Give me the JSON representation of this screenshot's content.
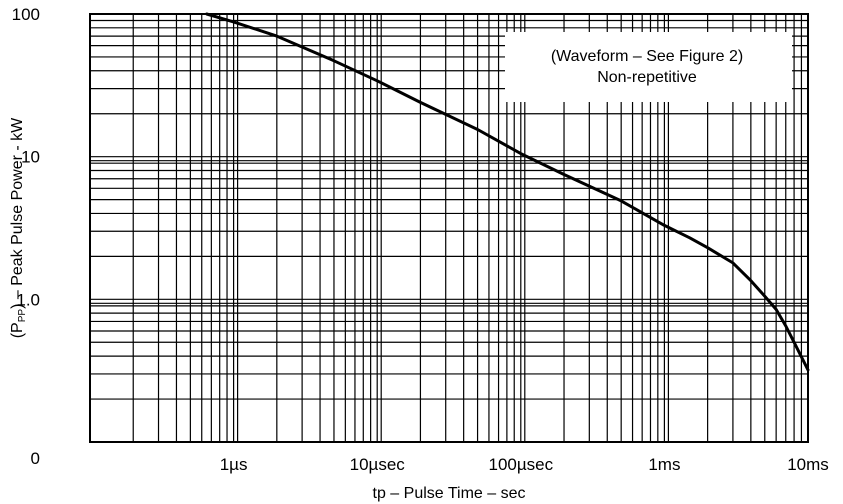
{
  "chart_data": {
    "type": "line",
    "title": "",
    "xlabel": "tp – Pulse Time – sec",
    "ylabel": "Peak Pulse Power - kW",
    "ylabel_prefix": "(P",
    "ylabel_subscript": "PP",
    "ylabel_suffix": ") – ",
    "x_scale": "log",
    "y_scale": "log",
    "xlim": [
      "0.1µs",
      "10ms"
    ],
    "ylim": [
      0.1,
      100
    ],
    "grid": true,
    "x_ticks": [
      {
        "value": 1e-06,
        "label": "1µs"
      },
      {
        "value": 1e-05,
        "label": "10µsec"
      },
      {
        "value": 0.0001,
        "label": "100µsec"
      },
      {
        "value": 0.001,
        "label": "1ms"
      },
      {
        "value": 0.01,
        "label": "10ms"
      }
    ],
    "y_ticks": [
      {
        "value": 0.1,
        "label": "0"
      },
      {
        "value": 1,
        "label": "1.0"
      },
      {
        "value": 10,
        "label": "10"
      },
      {
        "value": 100,
        "label": "100"
      }
    ],
    "annotation": {
      "line1": "(Waveform – See Figure 2)",
      "line2": "Non-repetitive"
    },
    "series": [
      {
        "x": [
          "0.65µs",
          "1µs",
          "2µs",
          "5µs",
          "10µs",
          "20µs",
          "50µs",
          "100µs",
          "200µs",
          "500µs",
          "1ms",
          "1.5ms",
          "2ms",
          "3ms",
          "4ms",
          "5ms",
          "6ms",
          "7ms",
          "8ms",
          "10ms"
        ],
        "values": [
          100,
          88,
          70,
          47,
          34,
          24,
          15.5,
          10.5,
          7.5,
          4.9,
          3.3,
          2.7,
          2.3,
          1.8,
          1.35,
          1.05,
          0.85,
          0.65,
          0.5,
          0.32
        ]
      }
    ],
    "color": "#000000"
  }
}
